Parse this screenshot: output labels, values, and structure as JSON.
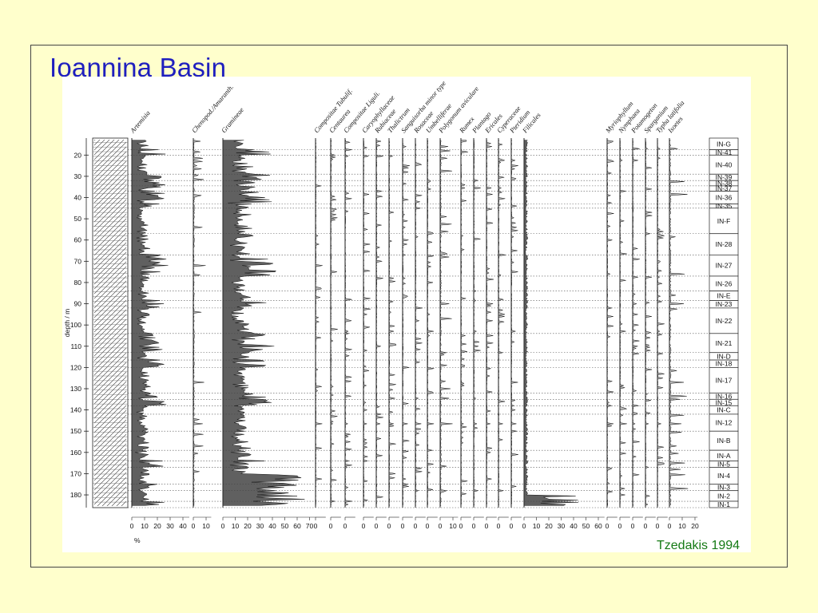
{
  "slide": {
    "title": "Ioannina Basin",
    "credit": "Tzedakis 1994"
  },
  "chart_data": {
    "type": "area",
    "title": "",
    "ylabel": "depth / m",
    "xlabel": "%",
    "ylim": [
      12,
      186
    ],
    "yticks": [
      20,
      30,
      40,
      50,
      60,
      70,
      80,
      90,
      100,
      110,
      120,
      130,
      140,
      150,
      160,
      170,
      180
    ],
    "columns": [
      {
        "name": "Artemisia",
        "ticks": [
          "0",
          "10",
          "20",
          "30",
          "40"
        ],
        "max": 45
      },
      {
        "name": "Chenopod./Amaranth.",
        "ticks": [
          "0",
          "10"
        ],
        "max": 14
      },
      {
        "name": "Gramineae",
        "ticks": [
          "0",
          "10",
          "20",
          "30",
          "40",
          "50",
          "60",
          "70"
        ],
        "max": 75
      },
      {
        "name": "Compositae Tubulif.",
        "ticks": [
          "0"
        ],
        "max": 8
      },
      {
        "name": "Centaurea",
        "ticks": [
          "0"
        ],
        "max": 8
      },
      {
        "name": "Compositae Liguli.",
        "ticks": [
          "0"
        ],
        "max": 8
      },
      {
        "name": "Caryophyllaceae",
        "ticks": [
          "0"
        ],
        "max": 8
      },
      {
        "name": "Rubiaceae",
        "ticks": [
          "0"
        ],
        "max": 8
      },
      {
        "name": "Thalictrum",
        "ticks": [
          "0"
        ],
        "max": 8
      },
      {
        "name": "Sanguisorba minor type",
        "ticks": [
          "0"
        ],
        "max": 8
      },
      {
        "name": "Rosaceae",
        "ticks": [
          "0"
        ],
        "max": 8
      },
      {
        "name": "Umbelliferae",
        "ticks": [
          "0"
        ],
        "max": 8
      },
      {
        "name": "Polygonum aviculare",
        "ticks": [
          "0",
          "10"
        ],
        "max": 14
      },
      {
        "name": "Rumex",
        "ticks": [
          "0"
        ],
        "max": 8
      },
      {
        "name": "Plantago",
        "ticks": [
          "0"
        ],
        "max": 8
      },
      {
        "name": "Ericales",
        "ticks": [
          "0"
        ],
        "max": 8
      },
      {
        "name": "Cyperaceae",
        "ticks": [
          "0"
        ],
        "max": 8
      },
      {
        "name": "Pteridium",
        "ticks": [
          "0"
        ],
        "max": 8
      },
      {
        "name": "Filicales",
        "ticks": [
          "0",
          "10",
          "20",
          "30",
          "40",
          "50",
          "60"
        ],
        "max": 65
      },
      {
        "name": "Myriophyllum",
        "ticks": [
          "0"
        ],
        "max": 8
      },
      {
        "name": "Nymphaea",
        "ticks": [
          "0"
        ],
        "max": 8
      },
      {
        "name": "Potamogeton",
        "ticks": [
          "0"
        ],
        "max": 8
      },
      {
        "name": "Sparganium",
        "ticks": [
          "0"
        ],
        "max": 8
      },
      {
        "name": "Typha latifolia",
        "ticks": [
          "0"
        ],
        "max": 8
      },
      {
        "name": "Isoetes",
        "ticks": [
          "0",
          "10",
          "20"
        ],
        "max": 22
      }
    ],
    "zones": [
      {
        "label": "IN-G",
        "top": 12,
        "bottom": 17.5
      },
      {
        "label": "IN-41",
        "top": 17.5,
        "bottom": 20
      },
      {
        "label": "IN-40",
        "top": 20,
        "bottom": 29
      },
      {
        "label": "IN-39",
        "top": 29,
        "bottom": 32
      },
      {
        "label": "IN-38",
        "top": 32,
        "bottom": 34.5
      },
      {
        "label": "IN-37",
        "top": 34.5,
        "bottom": 37
      },
      {
        "label": "IN-36",
        "top": 37,
        "bottom": 43
      },
      {
        "label": "IN-35",
        "top": 43,
        "bottom": 45
      },
      {
        "label": "IN-F",
        "top": 45,
        "bottom": 57
      },
      {
        "label": "IN-28",
        "top": 57,
        "bottom": 67
      },
      {
        "label": "IN-27",
        "top": 67,
        "bottom": 77
      },
      {
        "label": "IN-26",
        "top": 77,
        "bottom": 84
      },
      {
        "label": "IN-E",
        "top": 84,
        "bottom": 88.5
      },
      {
        "label": "IN-23",
        "top": 88.5,
        "bottom": 92
      },
      {
        "label": "IN-22",
        "top": 92,
        "bottom": 104
      },
      {
        "label": "IN-21",
        "top": 104,
        "bottom": 113
      },
      {
        "label": "IN-D",
        "top": 113,
        "bottom": 116.5
      },
      {
        "label": "IN-18",
        "top": 116.5,
        "bottom": 120
      },
      {
        "label": "IN-17",
        "top": 120,
        "bottom": 132
      },
      {
        "label": "IN-16",
        "top": 132,
        "bottom": 135
      },
      {
        "label": "IN-15",
        "top": 135,
        "bottom": 138
      },
      {
        "label": "IN-C",
        "top": 138,
        "bottom": 142
      },
      {
        "label": "IN-12",
        "top": 142,
        "bottom": 150
      },
      {
        "label": "IN-B",
        "top": 150,
        "bottom": 159
      },
      {
        "label": "IN-A",
        "top": 159,
        "bottom": 164
      },
      {
        "label": "IN-5",
        "top": 164,
        "bottom": 167
      },
      {
        "label": "IN-4",
        "top": 167,
        "bottom": 175
      },
      {
        "label": "IN-3",
        "top": 175,
        "bottom": 178
      },
      {
        "label": "IN-2",
        "top": 178,
        "bottom": 183
      },
      {
        "label": "IN-1",
        "top": 183,
        "bottom": 186
      }
    ]
  }
}
